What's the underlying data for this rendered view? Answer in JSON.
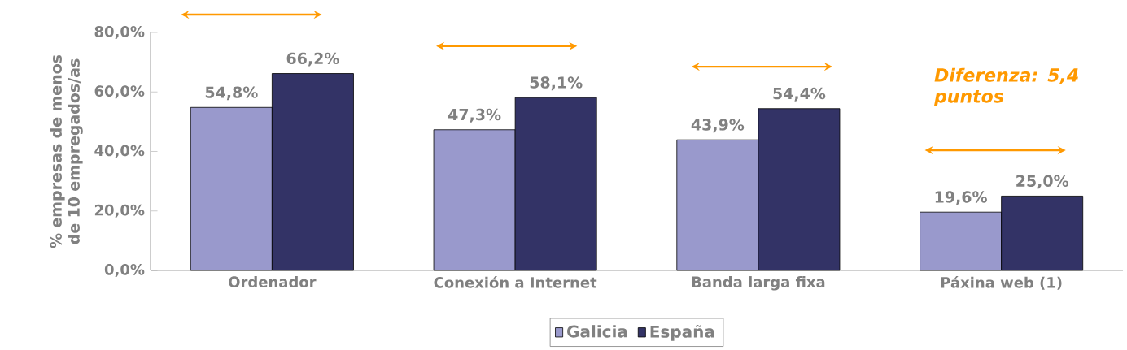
{
  "chart_data": {
    "type": "bar",
    "ylabel": "% empresas de menos de 10 empregados/as",
    "categories": [
      "Ordenador",
      "Conexión a Internet",
      "Banda larga fixa",
      "Páxina web (1)"
    ],
    "series": [
      {
        "name": "Galicia",
        "color": "#9999cc",
        "values": [
          54.8,
          47.3,
          43.9,
          19.6
        ],
        "value_labels": [
          "54,8%",
          "47,3%",
          "43,9%",
          "19,6%"
        ]
      },
      {
        "name": "España",
        "color": "#333366",
        "values": [
          66.2,
          58.1,
          54.4,
          25.0
        ],
        "value_labels": [
          "66,2%",
          "58,1%",
          "54,4%",
          "25,0%"
        ]
      }
    ],
    "ylim": [
      0,
      80
    ],
    "yticks": [
      {
        "value": 0,
        "label": "0,0%"
      },
      {
        "value": 20,
        "label": "20,0%"
      },
      {
        "value": 40,
        "label": "40,0%"
      },
      {
        "value": 60,
        "label": "60,0%"
      },
      {
        "value": 80,
        "label": "80,0%"
      }
    ],
    "grid": false,
    "legend": "bottom",
    "annotations": [
      "Diferenza: 5,4 puntos"
    ]
  }
}
